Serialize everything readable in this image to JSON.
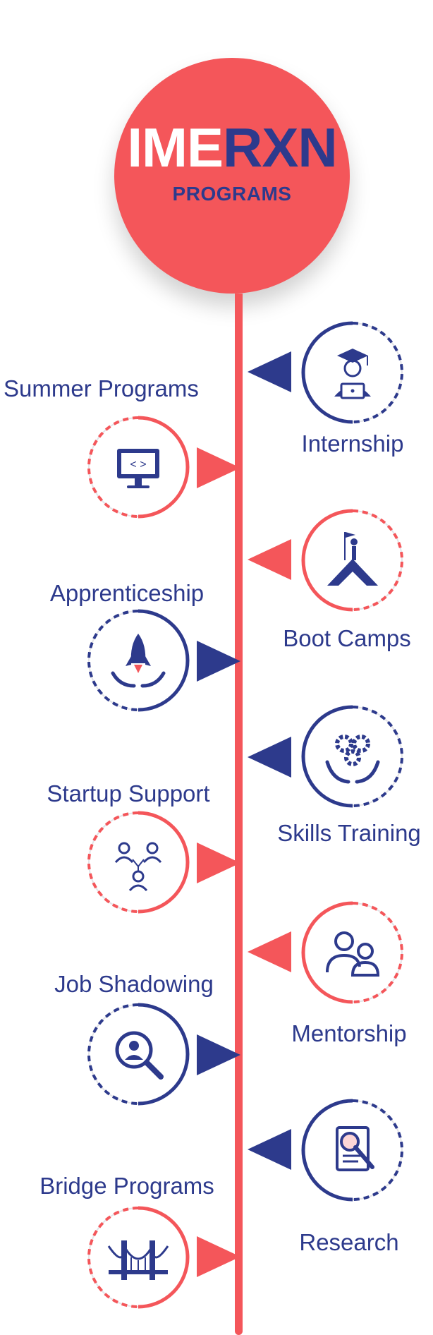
{
  "header": {
    "brand_part1": "IME",
    "brand_part2": "RXN",
    "subtitle": "PROGRAMS"
  },
  "colors": {
    "primary_red": "#f4565a",
    "navy": "#2d3a8c",
    "background": "#ffffff"
  },
  "programs": [
    {
      "label": "Internship",
      "side": "right",
      "accent": "navy",
      "icon": "graduate-laptop-icon"
    },
    {
      "label": "Summer Programs",
      "side": "left",
      "accent": "red",
      "icon": "monitor-code-icon"
    },
    {
      "label": "Boot Camps",
      "side": "right",
      "accent": "red",
      "icon": "mountain-flag-icon"
    },
    {
      "label": "Apprenticeship",
      "side": "left",
      "accent": "navy",
      "icon": "rocket-hands-icon"
    },
    {
      "label": "Skills Training",
      "side": "right",
      "accent": "navy",
      "icon": "gears-hands-icon"
    },
    {
      "label": "Startup Support",
      "side": "left",
      "accent": "red",
      "icon": "team-network-icon"
    },
    {
      "label": "Mentorship",
      "side": "right",
      "accent": "red",
      "icon": "mentor-people-icon"
    },
    {
      "label": "Job Shadowing",
      "side": "left",
      "accent": "navy",
      "icon": "magnifier-person-icon"
    },
    {
      "label": "Research",
      "side": "right",
      "accent": "navy",
      "icon": "document-search-icon"
    },
    {
      "label": "Bridge Programs",
      "side": "left",
      "accent": "red",
      "icon": "bridge-icon"
    }
  ]
}
